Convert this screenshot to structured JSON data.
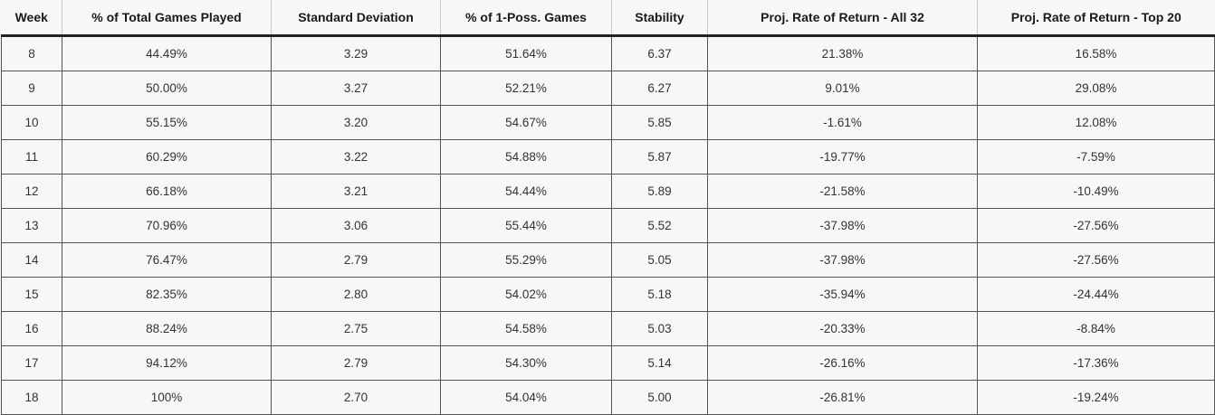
{
  "table": {
    "headers": [
      "Week",
      "% of Total Games Played",
      "Standard Deviation",
      "% of 1-Poss. Games",
      "Stability",
      "Proj. Rate of Return - All 32",
      "Proj. Rate of Return - Top 20"
    ],
    "rows": [
      [
        "8",
        "44.49%",
        "3.29",
        "51.64%",
        "6.37",
        "21.38%",
        "16.58%"
      ],
      [
        "9",
        "50.00%",
        "3.27",
        "52.21%",
        "6.27",
        "9.01%",
        "29.08%"
      ],
      [
        "10",
        "55.15%",
        "3.20",
        "54.67%",
        "5.85",
        "-1.61%",
        "12.08%"
      ],
      [
        "11",
        "60.29%",
        "3.22",
        "54.88%",
        "5.87",
        "-19.77%",
        "-7.59%"
      ],
      [
        "12",
        "66.18%",
        "3.21",
        "54.44%",
        "5.89",
        "-21.58%",
        "-10.49%"
      ],
      [
        "13",
        "70.96%",
        "3.06",
        "55.44%",
        "5.52",
        "-37.98%",
        "-27.56%"
      ],
      [
        "14",
        "76.47%",
        "2.79",
        "55.29%",
        "5.05",
        "-37.98%",
        "-27.56%"
      ],
      [
        "15",
        "82.35%",
        "2.80",
        "54.02%",
        "5.18",
        "-35.94%",
        "-24.44%"
      ],
      [
        "16",
        "88.24%",
        "2.75",
        "54.58%",
        "5.03",
        "-20.33%",
        "-8.84%"
      ],
      [
        "17",
        "94.12%",
        "2.79",
        "54.30%",
        "5.14",
        "-26.16%",
        "-17.36%"
      ],
      [
        "18",
        "100%",
        "2.70",
        "54.04%",
        "5.00",
        "-26.81%",
        "-19.24%"
      ]
    ]
  }
}
